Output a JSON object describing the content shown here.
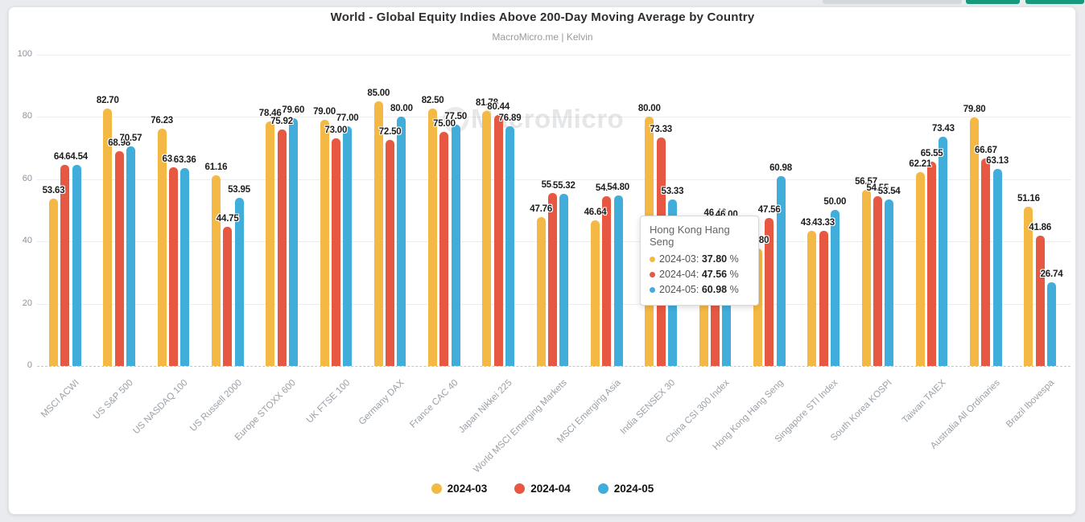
{
  "page": {
    "background": "#e9ebee",
    "card_background": "#ffffff"
  },
  "toolbar": {
    "pills": [
      {
        "name": "range-pill",
        "color": "#d4d8dc"
      },
      {
        "name": "action-pill-1",
        "color": "#17997e"
      },
      {
        "name": "action-pill-2",
        "color": "#17997e"
      }
    ]
  },
  "header": {
    "title": "World - Global Equity Indies Above 200-Day Moving Average by Country",
    "subtitle": "MacroMicro.me | Kelvin"
  },
  "watermark": {
    "text": "MacroMicro"
  },
  "chart_data": {
    "type": "bar",
    "title": "World - Global Equity Indies Above 200-Day Moving Average by Country",
    "subtitle": "MacroMicro.me | Kelvin",
    "ylabel": "",
    "xlabel": "",
    "ylim": [
      0,
      100
    ],
    "yticks": [
      0,
      20,
      40,
      60,
      80,
      100
    ],
    "grid": true,
    "legend_position": "bottom",
    "value_unit": "%",
    "categories": [
      "MSCI ACWI",
      "US S&P 500",
      "US NASDAQ 100",
      "US Russell 2000",
      "Europe STOXX 600",
      "UK FTSE 100",
      "Germany DAX",
      "France CAC 40",
      "Japan Nikkei 225",
      "World MSCI Emerging Markets",
      "MSCI Emerging Asia",
      "India SENSEX 30",
      "China CSI 300 Index",
      "Hong Kong Hang Seng",
      "Singapore STI Index",
      "South Korea KOSPI",
      "Taiwan TAIEX",
      "Australia All Ordinaries",
      "Brazil Ibovespa"
    ],
    "series": [
      {
        "name": "2024-03",
        "color": "#F4B844",
        "values": [
          53.63,
          82.7,
          76.23,
          61.16,
          78.46,
          79.0,
          85.0,
          82.5,
          81.78,
          47.76,
          46.64,
          80.0,
          43.0,
          37.8,
          43.43,
          56.57,
          62.21,
          79.8,
          51.16
        ]
      },
      {
        "name": "2024-04",
        "color": "#E65842",
        "values": [
          64.64,
          68.98,
          63.63,
          44.75,
          75.92,
          73.0,
          72.5,
          75.0,
          80.44,
          55.55,
          54.55,
          73.33,
          46.46,
          47.56,
          43.33,
          54.55,
          65.55,
          66.67,
          41.86
        ]
      },
      {
        "name": "2024-05",
        "color": "#41ADDB",
        "values": [
          64.54,
          70.57,
          63.36,
          53.95,
          79.6,
          77.0,
          80.0,
          77.5,
          76.89,
          55.32,
          54.8,
          53.33,
          46.0,
          60.98,
          50.0,
          53.54,
          73.43,
          63.13,
          26.74
        ]
      }
    ]
  },
  "tooltip": {
    "title": "Hong Kong Hang Seng",
    "rows": [
      {
        "series": "2024-03",
        "value": "37.80",
        "unit": "%",
        "color": "#F4B844"
      },
      {
        "series": "2024-04",
        "value": "47.56",
        "unit": "%",
        "color": "#E65842"
      },
      {
        "series": "2024-05",
        "value": "60.98",
        "unit": "%",
        "color": "#41ADDB"
      }
    ]
  },
  "legend": {
    "items": [
      "2024-03",
      "2024-04",
      "2024-05"
    ]
  }
}
